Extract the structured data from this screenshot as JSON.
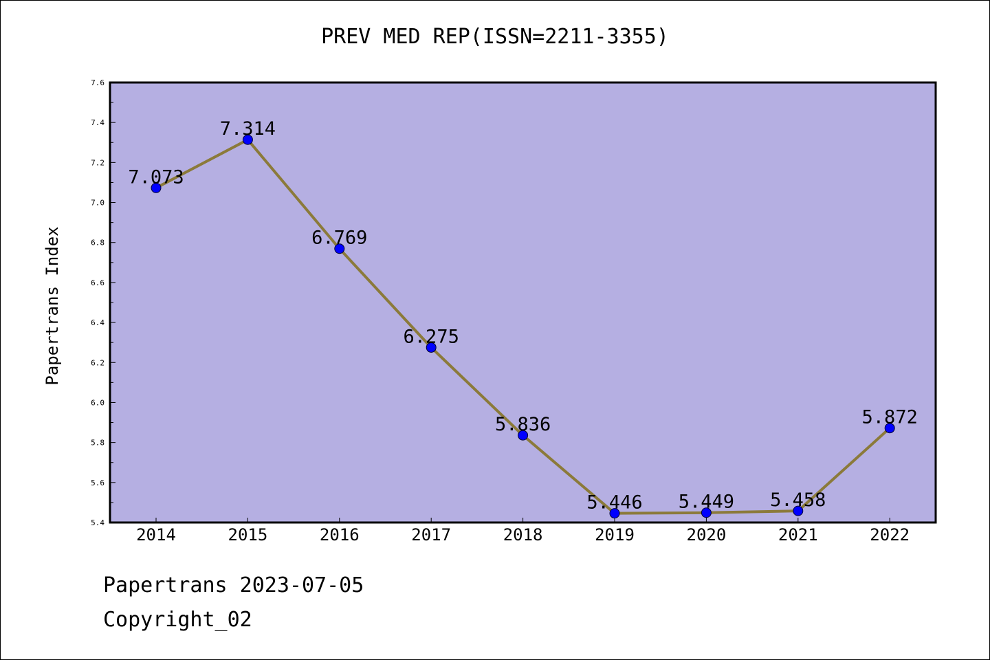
{
  "chart_data": {
    "type": "line",
    "title": "PREV MED REP(ISSN=2211-3355)",
    "xlabel": "",
    "ylabel": "Papertrans Index",
    "categories": [
      "2014",
      "2015",
      "2016",
      "2017",
      "2018",
      "2019",
      "2020",
      "2021",
      "2022"
    ],
    "series": [
      {
        "values": [
          7.073,
          7.314,
          6.769,
          6.275,
          5.836,
          5.446,
          5.449,
          5.458,
          5.872
        ],
        "labels": [
          "7.073",
          "7.314",
          "6.769",
          "6.275",
          "5.836",
          "5.446",
          "5.449",
          "5.458",
          "5.872"
        ]
      }
    ],
    "ylim": [
      5.4,
      7.6
    ],
    "yticks": [
      "5.4",
      "5.6",
      "5.8",
      "6.0",
      "6.2",
      "6.4",
      "6.6",
      "6.8",
      "7.0",
      "7.2",
      "7.4",
      "7.6"
    ],
    "grid": false,
    "legend": "none"
  },
  "footer": {
    "line1": "Papertrans 2023-07-05",
    "line2": "Copyright_02"
  },
  "colors": {
    "plot_background": "#b5afe2",
    "line": "#8b7a3a",
    "marker": "#0000ff",
    "axis": "#000000"
  }
}
